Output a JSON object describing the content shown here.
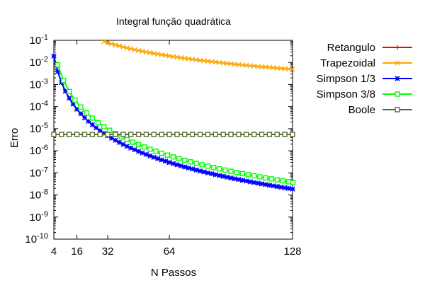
{
  "chart_data": {
    "type": "line",
    "title": "Integral função quadrática",
    "xlabel": "N Passos",
    "ylabel": "Erro",
    "xlim": [
      4,
      128
    ],
    "ylim_log10": [
      -10,
      -1
    ],
    "yscale": "log",
    "xticks": [
      {
        "value": 4,
        "label": "4"
      },
      {
        "value": 16,
        "label": "16"
      },
      {
        "value": 32,
        "label": "32"
      },
      {
        "value": 64,
        "label": "64"
      },
      {
        "value": 128,
        "label": "128"
      }
    ],
    "yticks": [
      {
        "exp": -1,
        "base": "10",
        "sup": "-1"
      },
      {
        "exp": -2,
        "base": "10",
        "sup": "-2"
      },
      {
        "exp": -3,
        "base": "10",
        "sup": "-3"
      },
      {
        "exp": -4,
        "base": "10",
        "sup": "-4"
      },
      {
        "exp": -5,
        "base": "10",
        "sup": "-5"
      },
      {
        "exp": -6,
        "base": "10",
        "sup": "-6"
      },
      {
        "exp": -7,
        "base": "10",
        "sup": "-7"
      },
      {
        "exp": -8,
        "base": "10",
        "sup": "-8"
      },
      {
        "exp": -9,
        "base": "10",
        "sup": "-9"
      },
      {
        "exp": -10,
        "base": "10",
        "sup": "-10"
      }
    ],
    "grid": false,
    "legend_position": "outside-top-right",
    "series": [
      {
        "name": "Retangulo",
        "color": "#ff0000",
        "marker": "plus",
        "x": [],
        "y": []
      },
      {
        "name": "Trapezoidal",
        "color": "#ffa500",
        "marker": "x",
        "x_range": [
          2,
          128,
          2
        ],
        "y_model": {
          "coef": 80,
          "power": 2
        },
        "note_visible_from_x": 30
      },
      {
        "name": "Simpson 1/3",
        "color": "#0000ff",
        "marker": "star",
        "x_range": [
          2,
          128,
          2
        ],
        "y_model": {
          "coef": 5,
          "power": 4
        }
      },
      {
        "name": "Simpson 3/8",
        "color": "#00ff00",
        "marker": "square",
        "x_range": [
          3,
          129,
          3
        ],
        "y_model": {
          "coef": 10,
          "power": 4
        }
      },
      {
        "name": "Boole",
        "color": "#556b2f",
        "marker": "square",
        "x_range": [
          4,
          128,
          4
        ],
        "y_model": {
          "coef": 5.5e-06,
          "power": 0
        }
      }
    ]
  }
}
